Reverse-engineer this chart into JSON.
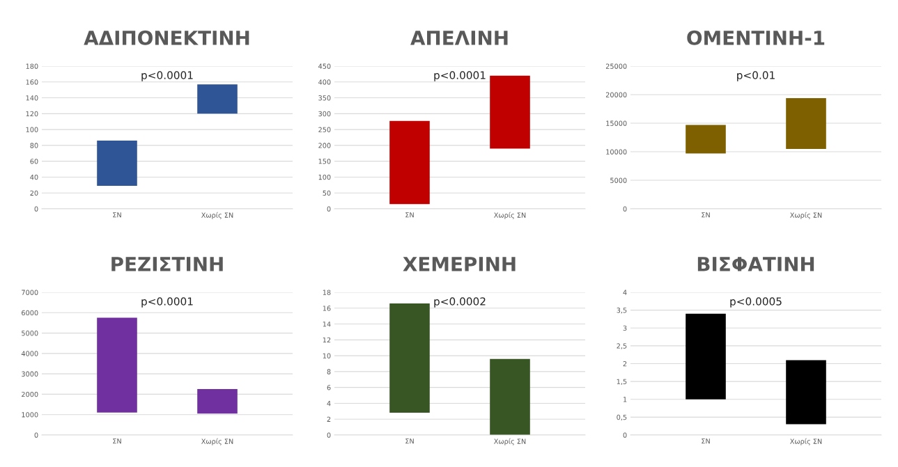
{
  "chart_data": [
    {
      "type": "bar",
      "title": "ΑΔΙΠΟΝΕΚΤΙΝΗ",
      "categories": [
        "ΣΝ",
        "Χωρίς ΣΝ"
      ],
      "values": [
        57,
        37
      ],
      "base": [
        29,
        120
      ],
      "color": "#2f5597",
      "ylim": [
        0,
        180
      ],
      "yticks": [
        0,
        20,
        40,
        60,
        80,
        100,
        120,
        140,
        160,
        180
      ],
      "grid": "y",
      "annotations": [
        "p<0.0001"
      ]
    },
    {
      "type": "bar",
      "title": "ΑΠΕΛΙΝΗ",
      "categories": [
        "ΣΝ",
        "Χωρίς ΣΝ"
      ],
      "values": [
        262,
        230
      ],
      "base": [
        15,
        190
      ],
      "color": "#c00000",
      "ylim": [
        0,
        450
      ],
      "yticks": [
        0,
        50,
        100,
        150,
        200,
        250,
        300,
        350,
        400,
        450
      ],
      "grid": "y",
      "annotations": [
        "p<0.0001"
      ]
    },
    {
      "type": "bar",
      "title": "ΟΜΕΝΤΙΝΗ-1",
      "categories": [
        "ΣΝ",
        "Χωρίς ΣΝ"
      ],
      "values": [
        5000,
        8900
      ],
      "base": [
        9700,
        10500
      ],
      "color": "#7f6000",
      "ylim": [
        0,
        25000
      ],
      "yticks": [
        0,
        5000,
        10000,
        15000,
        20000,
        25000
      ],
      "grid": "y",
      "annotations": [
        "p<0.01"
      ]
    },
    {
      "type": "bar",
      "title": "ΡΕΖΙΣΤΙΝΗ",
      "categories": [
        "ΣΝ",
        "Χωρίς ΣΝ"
      ],
      "values": [
        4650,
        1200
      ],
      "base": [
        1100,
        1050
      ],
      "color": "#7030a0",
      "ylim": [
        0,
        7000
      ],
      "yticks": [
        0,
        1000,
        2000,
        3000,
        4000,
        5000,
        6000,
        7000
      ],
      "grid": "y",
      "annotations": [
        "p<0.0001"
      ]
    },
    {
      "type": "bar",
      "title": "ΧΕΜΕΡΙΝΗ",
      "categories": [
        "ΣΝ",
        "Χωρίς ΣΝ"
      ],
      "values": [
        13.8,
        9.6
      ],
      "base": [
        2.8,
        0
      ],
      "color": "#375623",
      "ylim": [
        0,
        18
      ],
      "yticks": [
        0,
        2,
        4,
        6,
        8,
        10,
        12,
        14,
        16,
        18
      ],
      "grid": "y",
      "annotations": [
        "p<0.0002"
      ]
    },
    {
      "type": "bar",
      "title": "ΒΙΣΦΑΤΙΝΗ",
      "categories": [
        "ΣΝ",
        "Χωρίς ΣΝ"
      ],
      "values": [
        2.4,
        1.8
      ],
      "base": [
        1.0,
        0.3
      ],
      "color": "#000000",
      "ylim": [
        0,
        4
      ],
      "yticks": [
        0,
        {
          "value": 0.5,
          "label": "0,5"
        },
        1,
        {
          "value": 1.5,
          "label": "1,5"
        },
        2,
        {
          "value": 2.5,
          "label": "2,5"
        },
        3,
        {
          "value": 3.5,
          "label": "3,5"
        },
        4
      ],
      "grid": "y",
      "annotations": [
        "p<0.0005"
      ]
    }
  ]
}
